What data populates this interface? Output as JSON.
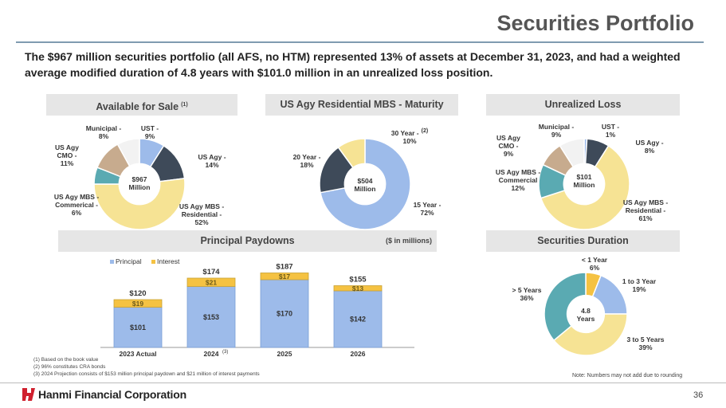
{
  "page": {
    "title": "Securities Portfolio",
    "subtitle": "The $967 million securities portfolio (all AFS, no HTM) represented 13% of assets at December 31, 2023, and had a weighted average modified duration of 4.8 years with $101.0 million in an unrealized loss position.",
    "units_note": "($ in millions)",
    "footnotes": [
      "(1)   Based on the book value",
      "(2)   96% constitutes CRA bonds",
      "(3)   2024 Projection consists of $153 million principal paydown and $21 million of interest payments"
    ],
    "rounding_note": "Note: Numbers may not add due to rounding",
    "company": "Hanmi Financial Corporation",
    "page_number": "36",
    "colors": {
      "navy": "#3e4a59",
      "light_blue": "#9dbbea",
      "gold": "#f6e394",
      "teal": "#5aaab2",
      "tan": "#c7ab8e",
      "white_slice": "#f2f2f2",
      "yellow": "#f5c242",
      "red_logo": "#d0202e"
    }
  },
  "chart_data": [
    {
      "type": "pie",
      "variant": "donut",
      "title": "Available for Sale",
      "title_note": "(1)",
      "center_label": [
        "$967",
        "Million"
      ],
      "slices": [
        {
          "label": "UST -",
          "value_label": "9%",
          "value": 9
        },
        {
          "label": "US Agy -",
          "value_label": "14%",
          "value": 14
        },
        {
          "label": "US Agy MBS - Residential -",
          "value_label": "52%",
          "value": 52
        },
        {
          "label": "US Agy MBS - Commerical -",
          "value_label": "6%",
          "value": 6
        },
        {
          "label": "US Agy CMO -",
          "value_label": "11%",
          "value": 11
        },
        {
          "label": "Municipal -",
          "value_label": "8%",
          "value": 8
        }
      ]
    },
    {
      "type": "pie",
      "variant": "donut",
      "title": "US Agy Residential MBS - Maturity",
      "center_label": [
        "$504",
        "Million"
      ],
      "slices": [
        {
          "label": "15 Year -",
          "value_label": "72%",
          "value": 72,
          "note": ""
        },
        {
          "label": "20 Year -",
          "value_label": "18%",
          "value": 18,
          "note": ""
        },
        {
          "label": "30 Year -",
          "value_label": "10%",
          "value": 10,
          "note": "(2)"
        }
      ]
    },
    {
      "type": "pie",
      "variant": "donut",
      "title": "Unrealized Loss",
      "center_label": [
        "$101",
        "Million"
      ],
      "slices": [
        {
          "label": "UST -",
          "value_label": "1%",
          "value": 1
        },
        {
          "label": "US Agy -",
          "value_label": "8%",
          "value": 8
        },
        {
          "label": "US Agy MBS - Residential -",
          "value_label": "61%",
          "value": 61
        },
        {
          "label": "US Agy MBS - Commercial",
          "value_label": "12%",
          "value": 12
        },
        {
          "label": "US Agy CMO -",
          "value_label": "9%",
          "value": 9
        },
        {
          "label": "Municipal -",
          "value_label": "9%",
          "value": 9
        }
      ]
    },
    {
      "type": "bar",
      "stacked": true,
      "title": "Principal Paydowns",
      "categories": [
        "2023 Actual",
        "2024",
        "2025",
        "2026"
      ],
      "category_notes": [
        "",
        "(3)",
        "",
        ""
      ],
      "series": [
        {
          "name": "Principal",
          "values": [
            101,
            153,
            170,
            142
          ],
          "labels": [
            "$101",
            "$153",
            "$170",
            "$142"
          ]
        },
        {
          "name": "Interest",
          "values": [
            19,
            21,
            17,
            13
          ],
          "labels": [
            "$19",
            "$21",
            "$17",
            "$13"
          ]
        }
      ],
      "totals": [
        "$120",
        "$174",
        "$187",
        "$155"
      ],
      "ylim": [
        0,
        200
      ],
      "legend": "top-left"
    },
    {
      "type": "pie",
      "variant": "donut",
      "title": "Securities Duration",
      "center_label": [
        "4.8",
        "Years"
      ],
      "slices": [
        {
          "label": "< 1 Year",
          "value_label": "6%",
          "value": 6
        },
        {
          "label": "1 to 3 Year",
          "value_label": "19%",
          "value": 19
        },
        {
          "label": "3 to 5 Years",
          "value_label": "39%",
          "value": 39
        },
        {
          "label": "> 5 Years",
          "value_label": "36%",
          "value": 36
        }
      ]
    }
  ]
}
